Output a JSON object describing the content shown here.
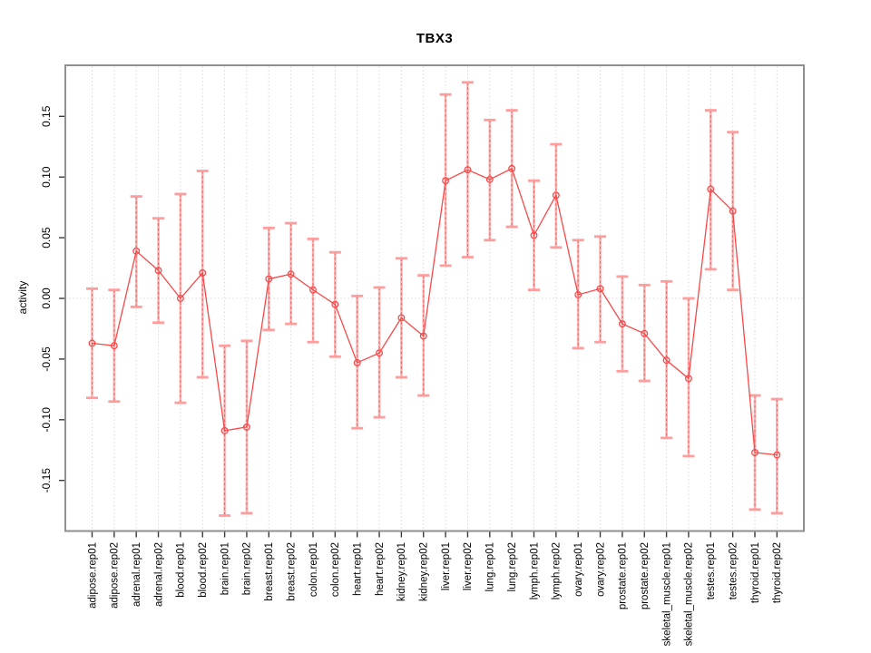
{
  "chart_data": {
    "type": "line",
    "title": "TBX3",
    "xlabel": "",
    "ylabel": "activity",
    "ylim": [
      -0.19,
      0.19
    ],
    "yticks": [
      0.15,
      0.1,
      0.05,
      0.0,
      -0.05,
      -0.1,
      -0.15
    ],
    "ytick_labels": [
      "0.15",
      "0.10",
      "0.05",
      "0.00",
      "-0.05",
      "-0.10",
      "-0.15"
    ],
    "grid": "vertical dotted gridline at each category; horizontal dotted line at y=0",
    "legend_position": "none",
    "marker": "open-circle",
    "line_color": "#f94848",
    "errorbar_cap_color": "#ff9c9c",
    "errorbar_line_color": "#ef5a5a",
    "gridline_color": "#d8d8d8",
    "box_color": "#8f8f8f",
    "categories": [
      "adipose.rep01",
      "adipose.rep02",
      "adrenal.rep01",
      "adrenal.rep02",
      "blood.rep01",
      "blood.rep02",
      "brain.rep01",
      "brain.rep02",
      "breast.rep01",
      "breast.rep02",
      "colon.rep01",
      "colon.rep02",
      "heart.rep01",
      "heart.rep02",
      "kidney.rep01",
      "kidney.rep02",
      "liver.rep01",
      "liver.rep02",
      "lung.rep01",
      "lung.rep02",
      "lymph.rep01",
      "lymph.rep02",
      "ovary.rep01",
      "ovary.rep02",
      "prostate.rep01",
      "prostate.rep02",
      "skeletal_muscle.rep01",
      "skeletal_muscle.rep02",
      "testes.rep01",
      "testes.rep02",
      "thyroid.rep01",
      "thyroid.rep02"
    ],
    "series": [
      {
        "name": "activity",
        "values": [
          -0.037,
          -0.039,
          0.039,
          0.023,
          0.0,
          0.021,
          -0.109,
          -0.106,
          0.016,
          0.02,
          0.007,
          -0.005,
          -0.053,
          -0.045,
          -0.016,
          -0.031,
          0.097,
          0.106,
          0.098,
          0.107,
          0.052,
          0.085,
          0.003,
          0.008,
          -0.021,
          -0.029,
          -0.051,
          -0.066,
          0.09,
          0.072,
          -0.127,
          -0.129
        ],
        "err_high": [
          0.008,
          0.007,
          0.084,
          0.066,
          0.086,
          0.105,
          -0.039,
          -0.035,
          0.058,
          0.062,
          0.049,
          0.038,
          0.002,
          0.009,
          0.033,
          0.019,
          0.168,
          0.178,
          0.147,
          0.155,
          0.097,
          0.127,
          0.048,
          0.051,
          0.018,
          0.011,
          0.014,
          0.0,
          0.155,
          0.137,
          -0.08,
          -0.083
        ],
        "err_low": [
          -0.082,
          -0.085,
          -0.007,
          -0.02,
          -0.086,
          -0.065,
          -0.179,
          -0.177,
          -0.026,
          -0.021,
          -0.036,
          -0.048,
          -0.107,
          -0.098,
          -0.065,
          -0.08,
          0.027,
          0.034,
          0.048,
          0.059,
          0.007,
          0.042,
          -0.041,
          -0.036,
          -0.06,
          -0.068,
          -0.115,
          -0.13,
          0.024,
          0.007,
          -0.174,
          -0.177
        ]
      }
    ]
  }
}
